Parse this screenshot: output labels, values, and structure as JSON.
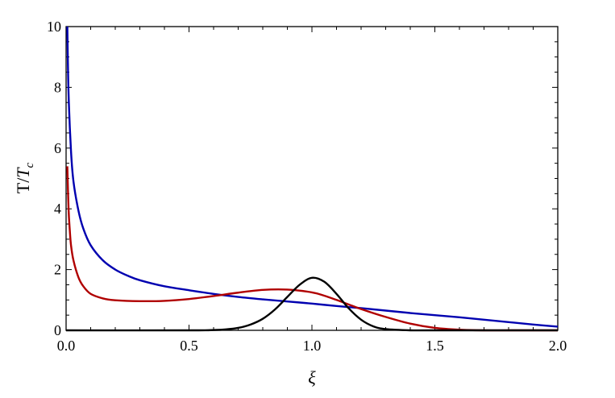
{
  "chart_data": {
    "type": "line",
    "xlabel": "ξ",
    "ylabel_main": "T/",
    "ylabel_sub_base": "T",
    "ylabel_sub": "c",
    "xlim": [
      0,
      2.0
    ],
    "ylim": [
      0,
      10
    ],
    "x_ticks": [
      "0.0",
      "0.5",
      "1.0",
      "1.5",
      "2.0"
    ],
    "x_tick_values": [
      0,
      0.5,
      1.0,
      1.5,
      2.0
    ],
    "y_ticks": [
      "0",
      "2",
      "4",
      "6",
      "8",
      "10"
    ],
    "y_tick_values": [
      0,
      2,
      4,
      6,
      8,
      10
    ],
    "series": [
      {
        "color": "#0000b0",
        "x": [
          0.005,
          0.01,
          0.02,
          0.03,
          0.05,
          0.07,
          0.1,
          0.15,
          0.2,
          0.25,
          0.3,
          0.4,
          0.5,
          0.6,
          0.7,
          0.8,
          0.9,
          1.0,
          1.1,
          1.2,
          1.3,
          1.4,
          1.5,
          1.6,
          1.7,
          1.8,
          1.9,
          2.0
        ],
        "y": [
          10.0,
          7.8,
          5.9,
          4.9,
          3.95,
          3.35,
          2.8,
          2.3,
          2.0,
          1.8,
          1.65,
          1.45,
          1.32,
          1.2,
          1.1,
          1.02,
          0.95,
          0.88,
          0.8,
          0.73,
          0.65,
          0.57,
          0.5,
          0.43,
          0.35,
          0.27,
          0.19,
          0.12
        ]
      },
      {
        "color": "#b00000",
        "x": [
          0.005,
          0.01,
          0.015,
          0.02,
          0.03,
          0.05,
          0.07,
          0.1,
          0.15,
          0.2,
          0.3,
          0.4,
          0.5,
          0.6,
          0.7,
          0.8,
          0.9,
          1.0,
          1.05,
          1.1,
          1.15,
          1.2,
          1.3,
          1.4,
          1.5,
          1.6,
          1.7,
          1.8,
          2.0
        ],
        "y": [
          5.4,
          4.0,
          3.3,
          2.8,
          2.3,
          1.75,
          1.45,
          1.2,
          1.05,
          0.99,
          0.96,
          0.97,
          1.03,
          1.13,
          1.24,
          1.33,
          1.34,
          1.25,
          1.14,
          1.0,
          0.85,
          0.7,
          0.44,
          0.22,
          0.08,
          0.02,
          0.0,
          0.0,
          0.0
        ]
      },
      {
        "color": "#000000",
        "x": [
          0.0,
          0.5,
          0.6,
          0.65,
          0.7,
          0.75,
          0.8,
          0.85,
          0.9,
          0.95,
          1.0,
          1.05,
          1.1,
          1.15,
          1.2,
          1.25,
          1.3,
          1.4,
          1.5,
          2.0
        ],
        "y": [
          0.0,
          0.0,
          0.01,
          0.03,
          0.08,
          0.19,
          0.38,
          0.69,
          1.1,
          1.5,
          1.73,
          1.6,
          1.2,
          0.72,
          0.35,
          0.13,
          0.04,
          0.0,
          0.0,
          0.0
        ]
      }
    ]
  }
}
